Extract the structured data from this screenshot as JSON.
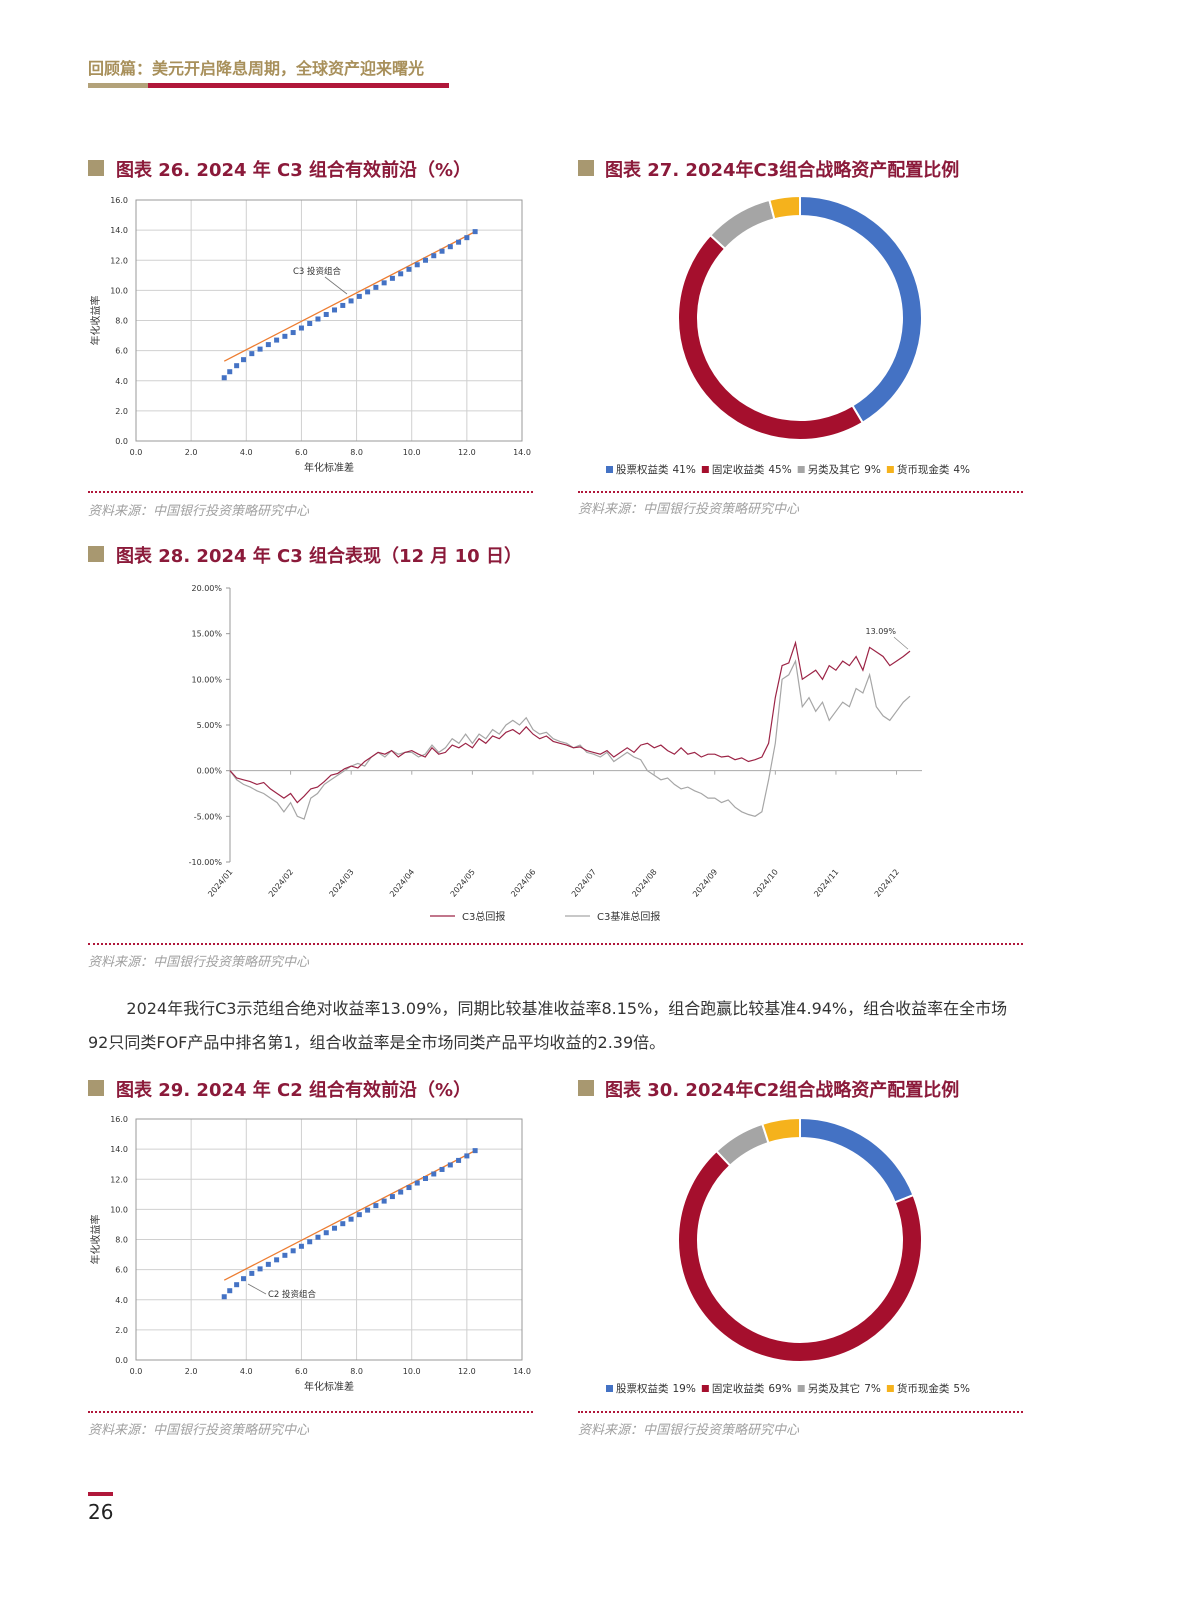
{
  "header": {
    "title": "回顾篇：美元开启降息周期，全球资产迎来曙光"
  },
  "chart_data": [
    {
      "type": "frontier",
      "title": "图表 26. 2024 年 C3 组合有效前沿（%）",
      "source": "资料来源：中国银行投资策略研究中心",
      "xlabel": "年化标准差",
      "ylabel": "年化收益率",
      "annotation": "C3 投资组合",
      "grid": true,
      "xlim": [
        0,
        14
      ],
      "ylim": [
        0,
        16
      ],
      "xticks": [
        {
          "value": 0,
          "label": "0.0"
        },
        {
          "value": 2,
          "label": "2.0"
        },
        {
          "value": 4,
          "label": "4.0"
        },
        {
          "value": 6,
          "label": "6.0"
        },
        {
          "value": 8,
          "label": "8.0"
        },
        {
          "value": 10,
          "label": "10.0"
        },
        {
          "value": 12,
          "label": "12.0"
        },
        {
          "value": 14,
          "label": "14.0"
        }
      ],
      "yticks": [
        {
          "value": 0,
          "label": "0.0"
        },
        {
          "value": 2,
          "label": "2.0"
        },
        {
          "value": 4,
          "label": "4.0"
        },
        {
          "value": 6,
          "label": "6.0"
        },
        {
          "value": 8,
          "label": "8.0"
        },
        {
          "value": 10,
          "label": "10.0"
        },
        {
          "value": 12,
          "label": "12.0"
        },
        {
          "value": 14,
          "label": "14.0"
        },
        {
          "value": 16,
          "label": "16.0"
        }
      ],
      "x": [
        3.2,
        3.4,
        3.65,
        3.9,
        4.2,
        4.5,
        4.8,
        5.1,
        5.4,
        5.7,
        6.0,
        6.3,
        6.6,
        6.9,
        7.2,
        7.5,
        7.8,
        8.1,
        8.4,
        8.7,
        9.0,
        9.3,
        9.6,
        9.9,
        10.2,
        10.5,
        10.8,
        11.1,
        11.4,
        11.7,
        12.0,
        12.3
      ],
      "series": [
        {
          "color": "#4472c4",
          "values": [
            4.2,
            4.6,
            5.0,
            5.4,
            5.8,
            6.1,
            6.4,
            6.7,
            6.95,
            7.2,
            7.5,
            7.8,
            8.1,
            8.4,
            8.7,
            9.0,
            9.3,
            9.6,
            9.9,
            10.2,
            10.5,
            10.8,
            11.1,
            11.4,
            11.7,
            12.0,
            12.3,
            12.6,
            12.9,
            13.2,
            13.5,
            13.9
          ]
        }
      ],
      "trend_line": {
        "color": "#ed7d31",
        "x": [
          3.2,
          12.3
        ],
        "values": [
          5.3,
          13.9
        ]
      }
    },
    {
      "type": "donut",
      "title": "图表 27. 2024年C3组合战略资产配置比例",
      "source": "资料来源：中国银行投资策略研究中心",
      "categories": [
        "股票权益类",
        "固定收益类",
        "另类及其它",
        "货币现金类"
      ],
      "values": [
        41,
        45,
        9,
        4
      ],
      "value_labels": [
        "41%",
        "45%",
        "9%",
        "4%"
      ],
      "colors": [
        "#4472c4",
        "#a50f2d",
        "#a5a5a5",
        "#f5b21c"
      ]
    },
    {
      "type": "line",
      "title": "图表 28. 2024 年 C3 组合表现（12 月 10 日）",
      "source": "资料来源：中国银行投资策略研究中心",
      "grid": false,
      "ylim": [
        -10,
        20
      ],
      "yticks": [
        {
          "value": -10,
          "label": "-10.00%"
        },
        {
          "value": -5,
          "label": "-5.00%"
        },
        {
          "value": 0,
          "label": "0.00%"
        },
        {
          "value": 5,
          "label": "5.00%"
        },
        {
          "value": 10,
          "label": "10.00%"
        },
        {
          "value": 15,
          "label": "15.00%"
        },
        {
          "value": 20,
          "label": "20.00%"
        }
      ],
      "categories": [
        "2024/01",
        null,
        null,
        null,
        null,
        null,
        null,
        null,
        null,
        "2024/02",
        null,
        null,
        null,
        null,
        null,
        null,
        null,
        null,
        "2024/03",
        null,
        null,
        null,
        null,
        null,
        null,
        null,
        null,
        "2024/04",
        null,
        null,
        null,
        null,
        null,
        null,
        null,
        null,
        "2024/05",
        null,
        null,
        null,
        null,
        null,
        null,
        null,
        null,
        "2024/06",
        null,
        null,
        null,
        null,
        null,
        null,
        null,
        null,
        "2024/07",
        null,
        null,
        null,
        null,
        null,
        null,
        null,
        null,
        "2024/08",
        null,
        null,
        null,
        null,
        null,
        null,
        null,
        null,
        "2024/09",
        null,
        null,
        null,
        null,
        null,
        null,
        null,
        null,
        "2024/10",
        null,
        null,
        null,
        null,
        null,
        null,
        null,
        null,
        "2024/11",
        null,
        null,
        null,
        null,
        null,
        null,
        null,
        null,
        "2024/12",
        null,
        null
      ],
      "series": [
        {
          "name": "C3总回报",
          "color": "#9c2446",
          "values": [
            0,
            -0.8,
            -1.0,
            -1.2,
            -1.5,
            -1.3,
            -2.0,
            -2.5,
            -3.0,
            -2.5,
            -3.5,
            -2.8,
            -2.0,
            -1.8,
            -1.2,
            -0.5,
            -0.3,
            0.2,
            0.5,
            0.3,
            1.0,
            1.5,
            2.0,
            1.8,
            2.2,
            1.5,
            2.0,
            2.2,
            1.8,
            1.5,
            2.5,
            1.8,
            2.0,
            2.8,
            2.5,
            3.0,
            2.5,
            3.5,
            3.0,
            3.8,
            3.5,
            4.2,
            4.5,
            4.0,
            4.8,
            4.0,
            3.5,
            3.8,
            3.2,
            3.0,
            2.8,
            2.5,
            2.6,
            2.2,
            2.0,
            1.8,
            2.2,
            1.5,
            2.0,
            2.5,
            2.0,
            2.8,
            3.0,
            2.5,
            2.8,
            2.2,
            1.8,
            2.5,
            1.8,
            2.0,
            1.5,
            1.8,
            1.8,
            1.5,
            1.6,
            1.2,
            1.4,
            1.0,
            1.2,
            1.5,
            3.0,
            8.0,
            11.5,
            11.8,
            14.0,
            10.0,
            10.5,
            11.0,
            10.0,
            11.5,
            11.0,
            12.0,
            11.5,
            12.5,
            11.0,
            13.5,
            13.0,
            12.5,
            11.5,
            12.0,
            12.5,
            13.09
          ],
          "value_labels": [
            null,
            null,
            null,
            null,
            null,
            null,
            null,
            null,
            null,
            null,
            null,
            null,
            null,
            null,
            null,
            null,
            null,
            null,
            null,
            null,
            null,
            null,
            null,
            null,
            null,
            null,
            null,
            null,
            null,
            null,
            null,
            null,
            null,
            null,
            null,
            null,
            null,
            null,
            null,
            null,
            null,
            null,
            null,
            null,
            null,
            null,
            null,
            null,
            null,
            null,
            null,
            null,
            null,
            null,
            null,
            null,
            null,
            null,
            null,
            null,
            null,
            null,
            null,
            null,
            null,
            null,
            null,
            null,
            null,
            null,
            null,
            null,
            null,
            null,
            null,
            null,
            null,
            null,
            null,
            null,
            null,
            null,
            null,
            null,
            null,
            null,
            null,
            null,
            null,
            null,
            null,
            null,
            null,
            null,
            null,
            null,
            null,
            null,
            null,
            null,
            null,
            "13.09%"
          ]
        },
        {
          "name": "C3基准总回报",
          "color": "#a6a6a6",
          "values": [
            0,
            -1.0,
            -1.5,
            -1.8,
            -2.2,
            -2.5,
            -3.0,
            -3.5,
            -4.5,
            -3.5,
            -5.0,
            -5.3,
            -3.0,
            -2.5,
            -1.5,
            -1.0,
            -0.5,
            0.0,
            0.5,
            0.8,
            0.5,
            1.5,
            2.0,
            1.5,
            2.2,
            1.8,
            2.0,
            2.0,
            1.5,
            1.8,
            2.8,
            2.0,
            2.5,
            3.5,
            3.0,
            4.0,
            3.0,
            4.0,
            3.5,
            4.5,
            4.0,
            5.0,
            5.5,
            5.0,
            5.8,
            4.5,
            4.0,
            4.2,
            3.5,
            3.2,
            3.0,
            2.5,
            2.8,
            2.0,
            1.8,
            1.5,
            2.0,
            1.0,
            1.5,
            2.0,
            1.5,
            1.2,
            0.0,
            -0.5,
            -1.0,
            -0.8,
            -1.5,
            -2.0,
            -1.8,
            -2.2,
            -2.5,
            -3.0,
            -3.0,
            -3.5,
            -3.2,
            -4.0,
            -4.5,
            -4.8,
            -5.0,
            -4.5,
            -1.0,
            3.0,
            10.0,
            10.5,
            12.0,
            7.0,
            8.0,
            6.5,
            7.5,
            5.5,
            6.5,
            7.5,
            7.0,
            9.0,
            8.5,
            10.5,
            7.0,
            6.0,
            5.5,
            6.5,
            7.5,
            8.15
          ]
        }
      ]
    },
    {
      "type": "frontier",
      "title": "图表 29. 2024 年 C2 组合有效前沿（%）",
      "source": "资料来源：中国银行投资策略研究中心",
      "xlabel": "年化标准差",
      "ylabel": "年化收益率",
      "annotation": "C2 投资组合",
      "grid": true,
      "xlim": [
        0,
        14
      ],
      "ylim": [
        0,
        16
      ],
      "xticks": [
        {
          "value": 0,
          "label": "0.0"
        },
        {
          "value": 2,
          "label": "2.0"
        },
        {
          "value": 4,
          "label": "4.0"
        },
        {
          "value": 6,
          "label": "6.0"
        },
        {
          "value": 8,
          "label": "8.0"
        },
        {
          "value": 10,
          "label": "10.0"
        },
        {
          "value": 12,
          "label": "12.0"
        },
        {
          "value": 14,
          "label": "14.0"
        }
      ],
      "yticks": [
        {
          "value": 0,
          "label": "0.0"
        },
        {
          "value": 2,
          "label": "2.0"
        },
        {
          "value": 4,
          "label": "4.0"
        },
        {
          "value": 6,
          "label": "6.0"
        },
        {
          "value": 8,
          "label": "8.0"
        },
        {
          "value": 10,
          "label": "10.0"
        },
        {
          "value": 12,
          "label": "12.0"
        },
        {
          "value": 14,
          "label": "14.0"
        },
        {
          "value": 16,
          "label": "16.0"
        }
      ],
      "x": [
        3.2,
        3.4,
        3.65,
        3.9,
        4.2,
        4.5,
        4.8,
        5.1,
        5.4,
        5.7,
        6.0,
        6.3,
        6.6,
        6.9,
        7.2,
        7.5,
        7.8,
        8.1,
        8.4,
        8.7,
        9.0,
        9.3,
        9.6,
        9.9,
        10.2,
        10.5,
        10.8,
        11.1,
        11.4,
        11.7,
        12.0,
        12.3
      ],
      "series": [
        {
          "color": "#4472c4",
          "values": [
            4.2,
            4.6,
            5.0,
            5.4,
            5.75,
            6.05,
            6.35,
            6.65,
            6.95,
            7.25,
            7.55,
            7.85,
            8.15,
            8.45,
            8.75,
            9.05,
            9.35,
            9.65,
            9.95,
            10.25,
            10.55,
            10.85,
            11.15,
            11.45,
            11.75,
            12.05,
            12.35,
            12.65,
            12.95,
            13.25,
            13.55,
            13.9
          ]
        }
      ],
      "trend_line": {
        "color": "#ed7d31",
        "x": [
          3.2,
          12.3
        ],
        "values": [
          5.3,
          13.9
        ]
      }
    },
    {
      "type": "donut",
      "title": "图表 30. 2024年C2组合战略资产配置比例",
      "source": "资料来源：中国银行投资策略研究中心",
      "categories": [
        "股票权益类",
        "固定收益类",
        "另类及其它",
        "货币现金类"
      ],
      "values": [
        19,
        69,
        7,
        5
      ],
      "value_labels": [
        "19%",
        "69%",
        "7%",
        "5%"
      ],
      "colors": [
        "#4472c4",
        "#a50f2d",
        "#a5a5a5",
        "#f5b21c"
      ]
    }
  ],
  "text": "2024年我行C3示范组合绝对收益率13.09%，同期比较基准收益率8.15%，组合跑赢比较基准4.94%，组合收益率在全市场92只同类FOF产品中排名第1，组合收益率是全市场同类产品平均收益的2.39倍。",
  "page_number": "26"
}
